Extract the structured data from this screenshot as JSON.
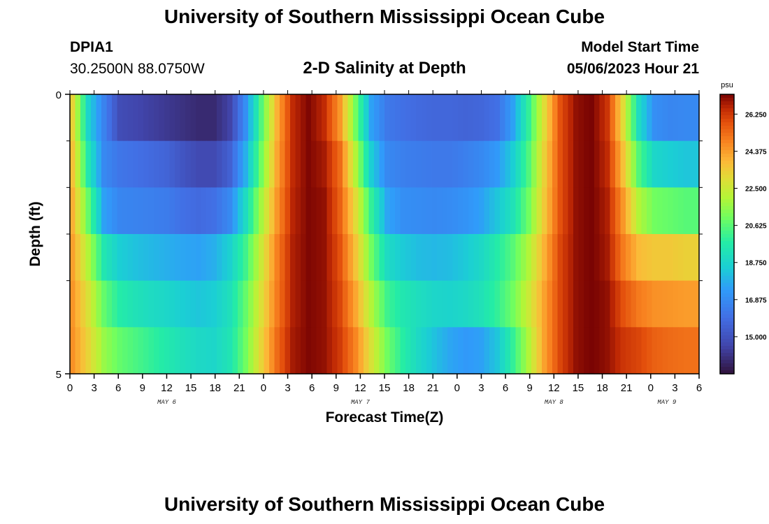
{
  "header": {
    "title": "University of Southern Mississippi Ocean Cube",
    "station": "DPIA1",
    "coords": "30.2500N  88.0750W",
    "subtitle": "2-D Salinity at Depth",
    "model_start_label": "Model Start Time",
    "model_start_value": "05/06/2023 Hour 21",
    "footer_title": "University of Southern Mississippi Ocean Cube"
  },
  "chart_data": {
    "type": "heatmap",
    "xlabel": "Forecast Time(Z)",
    "ylabel": "Depth (ft)",
    "y_ticks": [
      "0",
      "5"
    ],
    "ylim": [
      0,
      5
    ],
    "x_hour_ticks": [
      "0",
      "3",
      "6",
      "9",
      "12",
      "15",
      "18",
      "21",
      "0",
      "3",
      "6",
      "9",
      "12",
      "15",
      "18",
      "21",
      "0",
      "3",
      "6",
      "9",
      "12",
      "15",
      "18",
      "21",
      "0",
      "3",
      "6"
    ],
    "date_labels": [
      "MAY 6",
      "MAY 7",
      "MAY 8",
      "MAY 9"
    ],
    "colorbar": {
      "unit": "psu",
      "ticks": [
        "26.250",
        "24.375",
        "22.500",
        "20.625",
        "18.750",
        "16.875",
        "15.000"
      ],
      "min": 13.125,
      "max": 27.25
    },
    "depth_levels": 5,
    "hours": [
      0,
      2,
      4,
      6,
      8,
      10,
      12,
      14,
      16,
      18,
      20,
      22,
      24,
      26,
      28,
      30,
      32,
      34,
      36,
      38,
      40,
      42,
      44,
      46,
      48,
      50,
      52,
      54,
      56,
      58,
      60,
      62,
      64,
      66,
      68,
      70,
      72,
      74,
      76,
      78
    ],
    "salinity_rows": [
      [
        23.2,
        18.7,
        16.6,
        14.8,
        14.6,
        14.4,
        14.2,
        14.0,
        13.8,
        13.8,
        14.5,
        17.0,
        20.5,
        24.0,
        26.5,
        27.2,
        26.5,
        24.5,
        21.0,
        17.5,
        16.3,
        16.0,
        15.8,
        15.7,
        15.7,
        15.6,
        15.7,
        16.0,
        17.5,
        20.0,
        23.0,
        25.8,
        27.0,
        27.3,
        26.3,
        23.0,
        19.0,
        17.0,
        16.7,
        16.8
      ],
      [
        23.6,
        19.5,
        16.8,
        16.2,
        16.0,
        15.8,
        15.6,
        15.1,
        14.7,
        14.7,
        15.5,
        17.8,
        21.0,
        24.2,
        26.5,
        27.2,
        26.8,
        25.3,
        22.0,
        18.5,
        16.8,
        16.5,
        16.4,
        16.3,
        16.3,
        16.5,
        16.8,
        17.3,
        18.5,
        20.5,
        23.3,
        25.8,
        27.0,
        27.3,
        26.5,
        23.7,
        20.5,
        18.8,
        18.5,
        18.3
      ],
      [
        24.0,
        20.8,
        17.5,
        16.7,
        16.6,
        16.5,
        16.4,
        16.0,
        15.8,
        16.0,
        16.8,
        19.0,
        21.8,
        24.5,
        26.6,
        27.2,
        27.0,
        25.5,
        23.0,
        20.0,
        17.6,
        17.0,
        16.9,
        16.8,
        16.9,
        17.1,
        17.5,
        18.3,
        19.3,
        21.0,
        23.5,
        25.8,
        27.0,
        27.3,
        26.7,
        24.5,
        22.0,
        21.0,
        20.8,
        20.6
      ],
      [
        24.3,
        22.0,
        19.5,
        18.5,
        18.2,
        18.0,
        17.8,
        17.6,
        17.5,
        17.8,
        18.6,
        20.2,
        22.5,
        24.9,
        26.7,
        27.2,
        27.0,
        25.8,
        23.6,
        21.0,
        19.0,
        18.4,
        18.1,
        18.0,
        18.1,
        18.4,
        18.9,
        19.7,
        20.6,
        22.0,
        24.0,
        26.0,
        27.0,
        27.3,
        26.8,
        25.0,
        23.8,
        23.5,
        23.5,
        23.3
      ],
      [
        24.5,
        22.8,
        20.8,
        19.7,
        19.3,
        19.0,
        18.8,
        18.5,
        18.3,
        18.5,
        19.2,
        20.8,
        22.9,
        25.0,
        26.7,
        27.2,
        27.0,
        26.0,
        24.2,
        22.0,
        20.2,
        19.5,
        19.1,
        18.8,
        18.7,
        18.9,
        19.3,
        20.0,
        21.0,
        22.5,
        24.3,
        26.0,
        27.0,
        27.3,
        27.0,
        25.8,
        25.0,
        24.6,
        24.5,
        24.4
      ],
      [
        24.6,
        23.2,
        21.6,
        20.8,
        20.4,
        20.0,
        19.6,
        19.2,
        18.9,
        18.8,
        19.4,
        21.0,
        23.2,
        25.3,
        26.8,
        27.2,
        27.0,
        26.2,
        24.8,
        22.8,
        21.0,
        19.8,
        18.9,
        18.2,
        17.6,
        17.3,
        17.5,
        18.3,
        20.0,
        22.0,
        24.3,
        26.0,
        27.0,
        27.3,
        27.0,
        26.3,
        26.0,
        25.5,
        25.3,
        25.2
      ]
    ]
  }
}
